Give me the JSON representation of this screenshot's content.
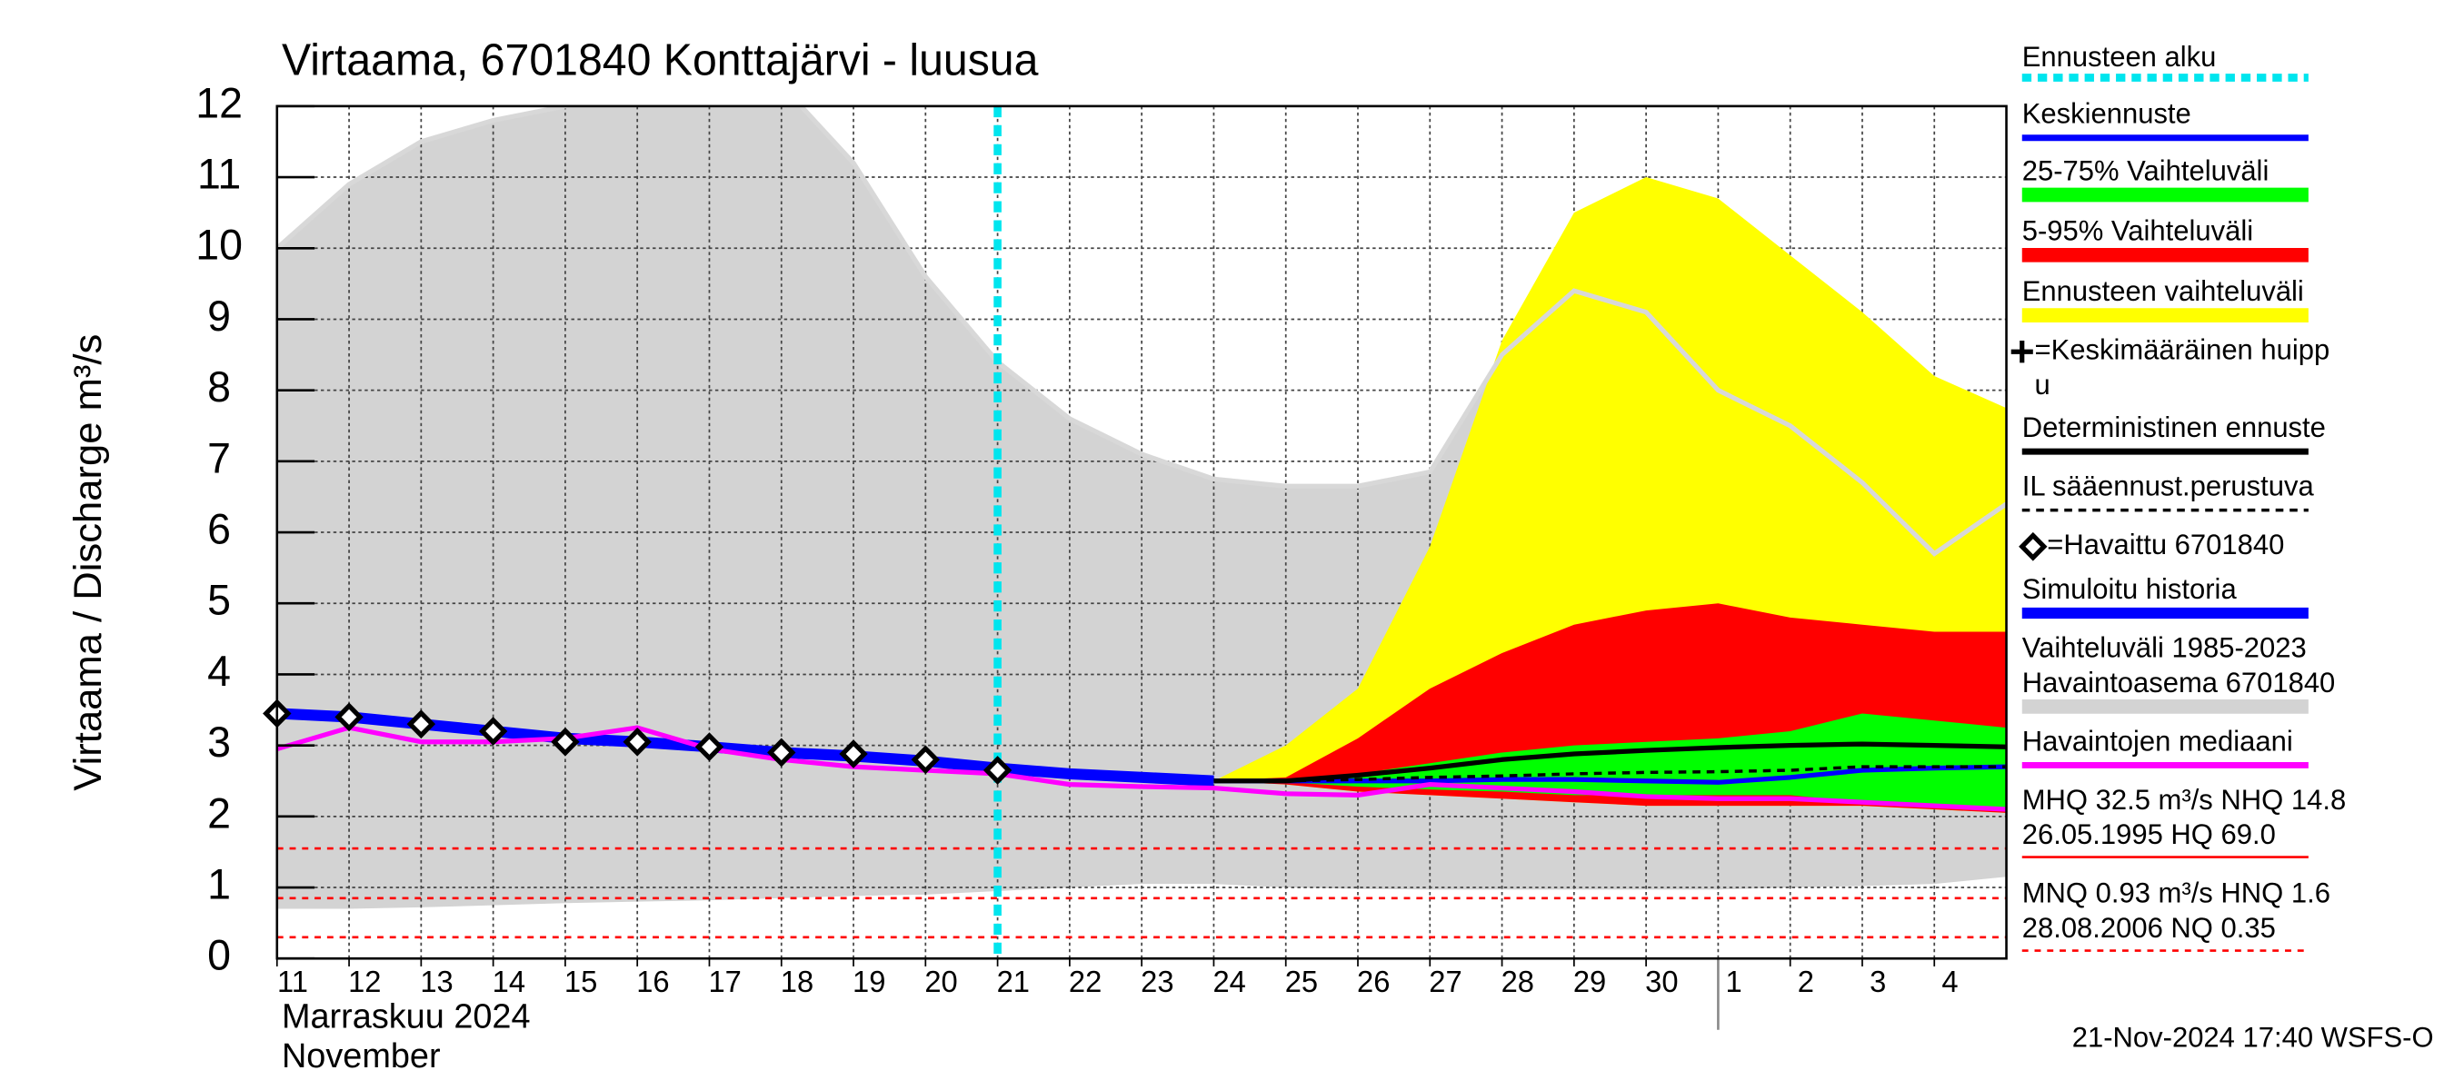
{
  "chart_data": {
    "type": "line",
    "title": "Virtaama, 6701840 Konttajärvi - luusua",
    "ylabel": "Virtaama / Discharge   m³/s",
    "xlabel": [
      "Marraskuu 2024",
      "November"
    ],
    "footer": "21-Nov-2024 17:40 WSFS-O",
    "xlim": [
      0,
      24
    ],
    "ylim": [
      0,
      12
    ],
    "yticks": [
      0,
      1,
      2,
      3,
      4,
      5,
      6,
      7,
      8,
      9,
      10,
      11,
      12
    ],
    "xticks": [
      {
        "value": 0,
        "label": "11"
      },
      {
        "value": 1,
        "label": "12"
      },
      {
        "value": 2,
        "label": "13"
      },
      {
        "value": 3,
        "label": "14"
      },
      {
        "value": 4,
        "label": "15"
      },
      {
        "value": 5,
        "label": "16"
      },
      {
        "value": 6,
        "label": "17"
      },
      {
        "value": 7,
        "label": "18"
      },
      {
        "value": 8,
        "label": "19"
      },
      {
        "value": 9,
        "label": "20"
      },
      {
        "value": 10,
        "label": "21"
      },
      {
        "value": 11,
        "label": "22"
      },
      {
        "value": 12,
        "label": "23"
      },
      {
        "value": 13,
        "label": "24"
      },
      {
        "value": 14,
        "label": "25"
      },
      {
        "value": 15,
        "label": "26"
      },
      {
        "value": 16,
        "label": "27"
      },
      {
        "value": 17,
        "label": "28"
      },
      {
        "value": 18,
        "label": "29"
      },
      {
        "value": 19,
        "label": "30"
      },
      {
        "value": 20,
        "label": "1"
      },
      {
        "value": 21,
        "label": "2"
      },
      {
        "value": 22,
        "label": "3"
      },
      {
        "value": 23,
        "label": "4"
      }
    ],
    "month_break": 20,
    "grid": true,
    "forecast_start": {
      "name": "Ennusteen alku",
      "x": 10,
      "color": "#00e5ee"
    },
    "x": [
      0,
      1,
      2,
      3,
      4,
      5,
      6,
      7,
      8,
      9,
      10,
      11,
      12,
      13,
      14,
      15,
      16,
      17,
      18,
      19,
      20,
      21,
      22,
      23,
      24
    ],
    "series": [
      {
        "name": [
          "Keskiennuste"
        ],
        "style": "line",
        "color": "#0000ff",
        "values": [
          null,
          null,
          null,
          null,
          null,
          null,
          null,
          null,
          null,
          null,
          null,
          null,
          null,
          2.5,
          2.5,
          2.5,
          2.5,
          2.52,
          2.52,
          2.5,
          2.48,
          2.55,
          2.65,
          2.68,
          2.7
        ]
      },
      {
        "name": [
          "25-75% Vaihteluväli"
        ],
        "style": "band",
        "color": "#00ff00",
        "values": [
          null,
          null,
          null,
          null,
          null,
          null,
          null,
          null,
          null,
          null,
          null,
          null,
          null,
          2.5,
          2.52,
          2.6,
          2.75,
          2.9,
          3.0,
          3.05,
          3.1,
          3.2,
          3.45,
          3.35,
          3.25
        ],
        "lower": [
          null,
          null,
          null,
          null,
          null,
          null,
          null,
          null,
          null,
          null,
          null,
          null,
          null,
          2.5,
          2.48,
          2.42,
          2.38,
          2.35,
          2.3,
          2.3,
          2.3,
          2.3,
          2.2,
          2.15,
          2.1
        ]
      },
      {
        "name": [
          "5-95% Vaihteluväli"
        ],
        "style": "band",
        "color": "#ff0000",
        "values": [
          null,
          null,
          null,
          null,
          null,
          null,
          null,
          null,
          null,
          null,
          null,
          null,
          null,
          2.5,
          2.55,
          3.1,
          3.8,
          4.3,
          4.7,
          4.9,
          5.0,
          4.8,
          4.7,
          4.6,
          4.6
        ],
        "lower": [
          null,
          null,
          null,
          null,
          null,
          null,
          null,
          null,
          null,
          null,
          null,
          null,
          null,
          2.5,
          2.45,
          2.35,
          2.3,
          2.25,
          2.2,
          2.15,
          2.15,
          2.15,
          2.15,
          2.1,
          2.05
        ]
      },
      {
        "name": [
          "Ennusteen vaihteluväli"
        ],
        "style": "band",
        "color": "#ffff00",
        "values": [
          null,
          null,
          null,
          null,
          null,
          null,
          null,
          null,
          null,
          null,
          null,
          null,
          null,
          2.5,
          3.0,
          3.8,
          5.8,
          8.7,
          10.5,
          11.0,
          10.7,
          9.9,
          9.1,
          8.2,
          7.75
        ],
        "lower": [
          null,
          null,
          null,
          null,
          null,
          null,
          null,
          null,
          null,
          null,
          null,
          null,
          null,
          2.5,
          2.45,
          2.35,
          2.3,
          2.25,
          2.2,
          2.15,
          2.15,
          2.15,
          2.15,
          2.1,
          2.05
        ]
      },
      {
        "name": [
          "=Keskimääräinen huipp",
          "u"
        ],
        "style": "plus",
        "color": "#000000"
      },
      {
        "name": [
          "Deterministinen ennuste"
        ],
        "style": "line",
        "color": "#000000",
        "values": [
          null,
          null,
          null,
          null,
          null,
          null,
          null,
          null,
          null,
          null,
          null,
          null,
          null,
          2.5,
          2.5,
          2.58,
          2.68,
          2.8,
          2.88,
          2.93,
          2.97,
          3.0,
          3.02,
          3.0,
          2.98
        ]
      },
      {
        "name": [
          "IL sääennust.perustuva"
        ],
        "style": "dashed",
        "color": "#000000",
        "values": [
          null,
          null,
          null,
          null,
          null,
          null,
          null,
          null,
          null,
          null,
          null,
          null,
          null,
          2.5,
          2.5,
          2.52,
          2.55,
          2.57,
          2.6,
          2.62,
          2.63,
          2.65,
          2.7,
          2.7,
          2.7
        ]
      },
      {
        "name": [
          "=Havaittu 6701840"
        ],
        "style": "diamond",
        "color": "#000000",
        "values": [
          3.45,
          3.4,
          3.3,
          3.2,
          3.05,
          3.05,
          2.98,
          2.9,
          2.88,
          2.8,
          2.65,
          null,
          null,
          null,
          null,
          null,
          null,
          null,
          null,
          null,
          null,
          null,
          null,
          null,
          null
        ]
      },
      {
        "name": [
          "Simuloitu historia"
        ],
        "style": "thick",
        "color": "#0000ff",
        "values": [
          3.45,
          3.4,
          3.3,
          3.2,
          3.1,
          3.05,
          2.98,
          2.9,
          2.85,
          2.78,
          2.68,
          2.6,
          2.55,
          2.5,
          null,
          null,
          null,
          null,
          null,
          null,
          null,
          null,
          null,
          null,
          null
        ]
      },
      {
        "name": [
          "Vaihteluväli 1985-2023",
          " Havaintoasema 6701840"
        ],
        "style": "band",
        "color": "#d3d3d3",
        "values": [
          10.0,
          10.9,
          11.5,
          11.8,
          12.0,
          12.2,
          12.3,
          12.3,
          11.2,
          9.6,
          8.4,
          7.6,
          7.1,
          6.75,
          6.65,
          6.65,
          6.85,
          8.5,
          9.4,
          9.1,
          8.0,
          7.5,
          6.7,
          5.7,
          6.4
        ],
        "lower": [
          0.7,
          0.7,
          0.72,
          0.75,
          0.78,
          0.8,
          0.82,
          0.85,
          0.88,
          0.9,
          0.95,
          1.0,
          1.05,
          1.05,
          1.0,
          0.98,
          0.97,
          0.97,
          0.97,
          0.97,
          0.97,
          1.0,
          1.02,
          1.05,
          1.15
        ]
      },
      {
        "name": [
          "Havaintojen mediaani"
        ],
        "style": "line",
        "color": "#ff00ff",
        "values": [
          2.95,
          3.25,
          3.05,
          3.05,
          3.1,
          3.25,
          2.95,
          2.8,
          2.7,
          2.65,
          2.6,
          2.45,
          2.42,
          2.4,
          2.32,
          2.3,
          2.45,
          2.4,
          2.35,
          2.28,
          2.25,
          2.25,
          2.2,
          2.15,
          2.1
        ]
      }
    ],
    "hlines": {
      "color": "#ff0000",
      "values": [
        1.55,
        0.85,
        0.3
      ]
    },
    "stats": [
      {
        "lines": [
          "MHQ 32.5 m³/s NHQ 14.8",
          "26.05.1995 HQ 69.0"
        ],
        "color": "#ff0000",
        "dashed": false
      },
      {
        "lines": [
          "MNQ 0.93 m³/s HNQ  1.6",
          "28.08.2006 NQ 0.35"
        ],
        "color": "#ff0000",
        "dashed": true
      }
    ]
  }
}
